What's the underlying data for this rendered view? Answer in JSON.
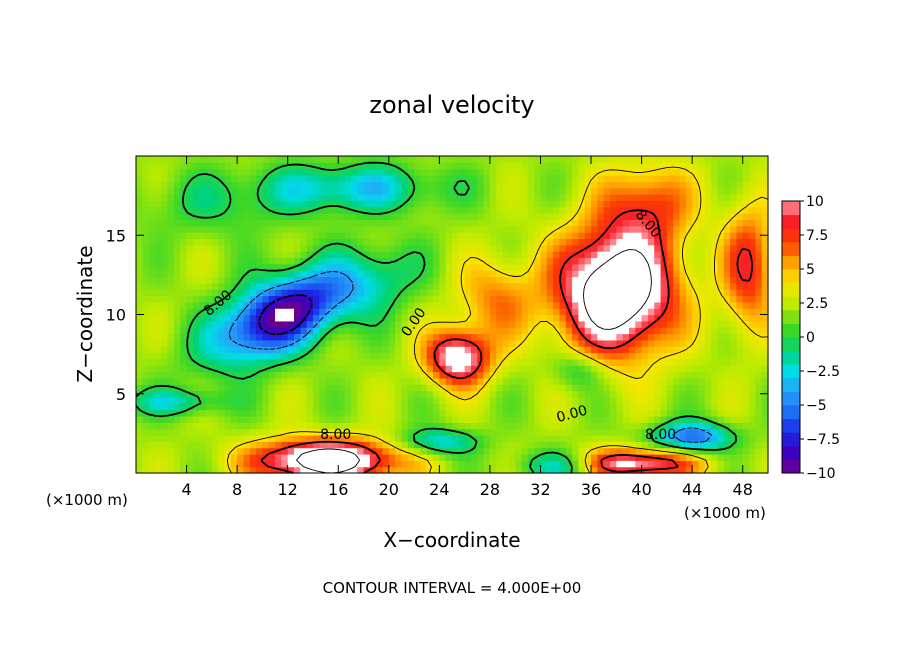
{
  "chart_data": {
    "type": "heatmap",
    "title": "zonal velocity",
    "xlabel": "X−coordinate",
    "ylabel": "Z−coordinate",
    "x_unit_left": "(×1000 m)",
    "x_unit_right": "(×1000 m)",
    "footer": "CONTOUR INTERVAL = 4.000E+00",
    "xlim": [
      0,
      50
    ],
    "ylim": [
      0,
      20
    ],
    "x_ticks": [
      4,
      8,
      12,
      16,
      20,
      24,
      28,
      32,
      36,
      40,
      44,
      48
    ],
    "x_tick_labels": [
      "4",
      "8",
      "12",
      "16",
      "20",
      "24",
      "28",
      "32",
      "36",
      "40",
      "44",
      "48"
    ],
    "y_ticks": [
      5,
      10,
      15
    ],
    "y_tick_labels": [
      "5",
      "10",
      "15"
    ],
    "colorbar": {
      "range": [
        -10,
        10
      ],
      "ticks": [
        10,
        7.5,
        5,
        2.5,
        0,
        -2.5,
        -5,
        -7.5,
        -10
      ],
      "tick_labels": [
        "10",
        "7.5",
        "5",
        "2.5",
        "0",
        "−2.5",
        "−5",
        "−7.5",
        "−10"
      ]
    },
    "contour_labels": [
      {
        "text": "8.00",
        "x": 6.5,
        "y": 10.7,
        "angle": -40
      },
      {
        "text": "0.00",
        "x": 22.0,
        "y": 9.5,
        "angle": -55
      },
      {
        "text": "8.00",
        "x": 40.5,
        "y": 15.7,
        "angle": 50
      },
      {
        "text": "8.00",
        "x": 15.8,
        "y": 2.4,
        "angle": 0
      },
      {
        "text": "0.00",
        "x": 34.5,
        "y": 3.7,
        "angle": -15
      },
      {
        "text": "8.00",
        "x": 41.5,
        "y": 2.4,
        "angle": 0
      }
    ],
    "features": [
      {
        "x": 11.5,
        "y": 10.0,
        "v": -12,
        "sx": 5.5,
        "sy": 2.2,
        "rot": 0.35
      },
      {
        "x": 19.0,
        "y": 12.0,
        "v": -3,
        "sx": 3.5,
        "sy": 2.0,
        "rot": 0.3
      },
      {
        "x": 6.0,
        "y": 17.0,
        "v": -2,
        "sx": 6.0,
        "sy": 2.0,
        "rot": 0
      },
      {
        "x": 17.0,
        "y": 18.0,
        "v": -5,
        "sx": 7.0,
        "sy": 1.5,
        "rot": 0
      },
      {
        "x": 3.0,
        "y": 4.5,
        "v": -4,
        "sx": 4.0,
        "sy": 0.8,
        "rot": 0
      },
      {
        "x": 15.0,
        "y": 0.8,
        "v": 13,
        "sx": 5.5,
        "sy": 1.3,
        "rot": 0
      },
      {
        "x": 38.0,
        "y": 11.5,
        "v": 14,
        "sx": 4.5,
        "sy": 3.8,
        "rot": 0
      },
      {
        "x": 40.5,
        "y": 17.0,
        "v": 5,
        "sx": 3.5,
        "sy": 2.5,
        "rot": 0
      },
      {
        "x": 25.5,
        "y": 7.3,
        "v": 10,
        "sx": 2.5,
        "sy": 1.7,
        "rot": 0
      },
      {
        "x": 28.5,
        "y": 11.0,
        "v": 4,
        "sx": 3.0,
        "sy": 2.5,
        "rot": 0
      },
      {
        "x": 35.0,
        "y": 6.5,
        "v": -3,
        "sx": 2.0,
        "sy": 1.2,
        "rot": 0
      },
      {
        "x": 39.0,
        "y": 0.6,
        "v": 10,
        "sx": 5.0,
        "sy": 0.9,
        "rot": 0
      },
      {
        "x": 44.0,
        "y": 2.3,
        "v": -8,
        "sx": 3.0,
        "sy": 0.9,
        "rot": 0
      },
      {
        "x": 34.0,
        "y": 0.5,
        "v": -6,
        "sx": 3.5,
        "sy": 0.9,
        "rot": 0
      },
      {
        "x": 48.5,
        "y": 13.0,
        "v": 6,
        "sx": 2.0,
        "sy": 4.0,
        "rot": 0
      },
      {
        "x": 24.0,
        "y": 2.0,
        "v": -5,
        "sx": 3.0,
        "sy": 0.8,
        "rot": 0
      }
    ],
    "background": 2.0
  }
}
